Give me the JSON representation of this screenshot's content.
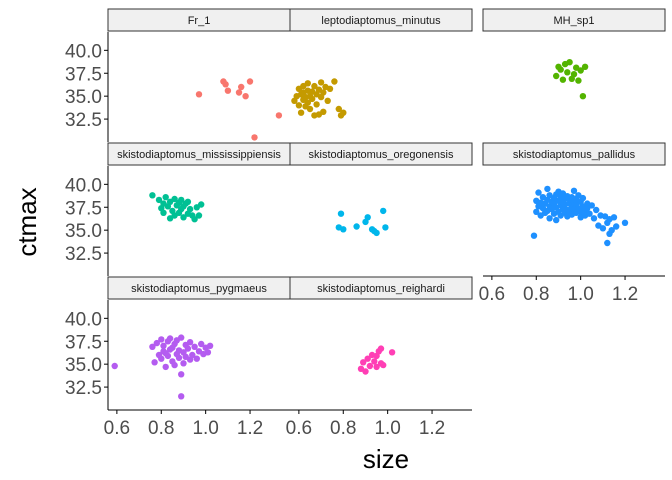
{
  "chart_data": {
    "type": "scatter",
    "xlabel": "size",
    "ylabel": "ctmax",
    "xlim": [
      0.56,
      1.38
    ],
    "ylim": [
      30.0,
      42.0
    ],
    "x_ticks": [
      "0.6",
      "0.8",
      "1.0",
      "1.2"
    ],
    "y_ticks": [
      "32.5",
      "35.0",
      "37.5",
      "40.0"
    ],
    "facets": [
      {
        "name": "Fr_1",
        "color": "#F8766D",
        "points": [
          [
            0.97,
            35.2
          ],
          [
            1.08,
            36.6
          ],
          [
            1.09,
            36.3
          ],
          [
            1.1,
            35.6
          ],
          [
            1.15,
            35.4
          ],
          [
            1.16,
            36.0
          ],
          [
            1.18,
            35.0
          ],
          [
            1.2,
            36.6
          ],
          [
            1.22,
            30.5
          ],
          [
            1.33,
            32.9
          ]
        ]
      },
      {
        "name": "leptodiaptomus_minutus",
        "color": "#C49A00",
        "points": [
          [
            0.58,
            34.5
          ],
          [
            0.59,
            35.0
          ],
          [
            0.6,
            35.8
          ],
          [
            0.6,
            34.0
          ],
          [
            0.61,
            35.2
          ],
          [
            0.61,
            33.2
          ],
          [
            0.62,
            36.1
          ],
          [
            0.62,
            34.6
          ],
          [
            0.62,
            35.4
          ],
          [
            0.63,
            34.9
          ],
          [
            0.63,
            33.9
          ],
          [
            0.64,
            35.6
          ],
          [
            0.64,
            36.4
          ],
          [
            0.64,
            34.3
          ],
          [
            0.65,
            35.0
          ],
          [
            0.65,
            33.6
          ],
          [
            0.66,
            35.5
          ],
          [
            0.66,
            34.7
          ],
          [
            0.67,
            36.1
          ],
          [
            0.67,
            32.9
          ],
          [
            0.68,
            35.2
          ],
          [
            0.68,
            34.1
          ],
          [
            0.69,
            35.7
          ],
          [
            0.69,
            33.0
          ],
          [
            0.7,
            36.5
          ],
          [
            0.7,
            34.9
          ],
          [
            0.71,
            35.4
          ],
          [
            0.71,
            33.3
          ],
          [
            0.72,
            36.0
          ],
          [
            0.73,
            34.5
          ],
          [
            0.74,
            35.8
          ],
          [
            0.76,
            36.6
          ],
          [
            0.78,
            33.6
          ],
          [
            0.79,
            32.9
          ],
          [
            0.8,
            33.2
          ]
        ]
      },
      {
        "name": "MH_sp1",
        "color": "#53B400",
        "points": [
          [
            0.89,
            37.2
          ],
          [
            0.9,
            38.2
          ],
          [
            0.91,
            37.9
          ],
          [
            0.92,
            36.8
          ],
          [
            0.93,
            38.5
          ],
          [
            0.94,
            37.6
          ],
          [
            0.95,
            38.7
          ],
          [
            0.96,
            36.9
          ],
          [
            0.97,
            37.4
          ],
          [
            0.98,
            38.1
          ],
          [
            0.99,
            36.7
          ],
          [
            1.0,
            37.8
          ],
          [
            1.01,
            35.0
          ],
          [
            1.02,
            38.2
          ]
        ]
      },
      {
        "name": "skistodiaptomus_mississippiensis",
        "color": "#00C094",
        "points": [
          [
            0.76,
            38.8
          ],
          [
            0.79,
            38.3
          ],
          [
            0.8,
            37.4
          ],
          [
            0.81,
            36.9
          ],
          [
            0.81,
            37.9
          ],
          [
            0.82,
            38.6
          ],
          [
            0.83,
            37.6
          ],
          [
            0.84,
            36.3
          ],
          [
            0.84,
            38.1
          ],
          [
            0.85,
            37.1
          ],
          [
            0.86,
            38.4
          ],
          [
            0.86,
            36.6
          ],
          [
            0.87,
            37.7
          ],
          [
            0.88,
            38.0
          ],
          [
            0.88,
            36.9
          ],
          [
            0.89,
            37.3
          ],
          [
            0.89,
            38.3
          ],
          [
            0.9,
            36.4
          ],
          [
            0.9,
            37.6
          ],
          [
            0.91,
            37.9
          ],
          [
            0.92,
            36.8
          ],
          [
            0.92,
            38.1
          ],
          [
            0.93,
            37.3
          ],
          [
            0.94,
            36.6
          ],
          [
            0.95,
            36.2
          ],
          [
            0.96,
            37.5
          ],
          [
            0.97,
            36.6
          ],
          [
            0.98,
            37.8
          ]
        ]
      },
      {
        "name": "skistodiaptomus_oregonensis",
        "color": "#00B6EB",
        "points": [
          [
            0.78,
            35.3
          ],
          [
            0.79,
            36.8
          ],
          [
            0.8,
            35.1
          ],
          [
            0.86,
            35.4
          ],
          [
            0.9,
            35.9
          ],
          [
            0.91,
            36.4
          ],
          [
            0.93,
            35.1
          ],
          [
            0.94,
            34.9
          ],
          [
            0.95,
            34.7
          ],
          [
            0.98,
            37.1
          ],
          [
            0.99,
            35.3
          ]
        ]
      },
      {
        "name": "skistodiaptomus_pallidus",
        "color": "#A58AFF",
        "colorOverride": "#1E90FF",
        "points": [
          [
            0.8,
            38.2
          ],
          [
            0.8,
            37.0
          ],
          [
            0.81,
            37.6
          ],
          [
            0.81,
            39.1
          ],
          [
            0.82,
            38.0
          ],
          [
            0.82,
            36.6
          ],
          [
            0.83,
            37.4
          ],
          [
            0.83,
            38.6
          ],
          [
            0.84,
            37.9
          ],
          [
            0.84,
            36.9
          ],
          [
            0.85,
            38.3
          ],
          [
            0.85,
            37.1
          ],
          [
            0.85,
            39.5
          ],
          [
            0.86,
            37.6
          ],
          [
            0.86,
            38.8
          ],
          [
            0.86,
            36.3
          ],
          [
            0.87,
            38.1
          ],
          [
            0.87,
            37.3
          ],
          [
            0.88,
            38.5
          ],
          [
            0.88,
            36.8
          ],
          [
            0.88,
            37.9
          ],
          [
            0.89,
            38.9
          ],
          [
            0.89,
            37.5
          ],
          [
            0.89,
            36.1
          ],
          [
            0.9,
            38.2
          ],
          [
            0.9,
            37.0
          ],
          [
            0.9,
            39.2
          ],
          [
            0.91,
            37.7
          ],
          [
            0.91,
            38.6
          ],
          [
            0.91,
            36.6
          ],
          [
            0.92,
            38.0
          ],
          [
            0.92,
            37.3
          ],
          [
            0.92,
            39.0
          ],
          [
            0.93,
            37.8
          ],
          [
            0.93,
            36.9
          ],
          [
            0.93,
            38.4
          ],
          [
            0.94,
            37.2
          ],
          [
            0.94,
            38.7
          ],
          [
            0.94,
            36.5
          ],
          [
            0.95,
            37.9
          ],
          [
            0.95,
            38.3
          ],
          [
            0.95,
            37.0
          ],
          [
            0.96,
            38.6
          ],
          [
            0.96,
            37.5
          ],
          [
            0.96,
            36.7
          ],
          [
            0.97,
            38.1
          ],
          [
            0.97,
            37.3
          ],
          [
            0.97,
            39.3
          ],
          [
            0.98,
            37.8
          ],
          [
            0.98,
            36.9
          ],
          [
            0.98,
            38.4
          ],
          [
            0.99,
            37.4
          ],
          [
            0.99,
            38.8
          ],
          [
            1.0,
            37.0
          ],
          [
            1.0,
            38.1
          ],
          [
            1.0,
            36.4
          ],
          [
            1.01,
            37.6
          ],
          [
            1.01,
            38.5
          ],
          [
            1.02,
            37.2
          ],
          [
            1.02,
            36.6
          ],
          [
            1.03,
            37.9
          ],
          [
            1.03,
            37.4
          ],
          [
            1.04,
            36.8
          ],
          [
            1.05,
            37.7
          ],
          [
            1.06,
            36.3
          ],
          [
            1.07,
            37.2
          ],
          [
            1.08,
            35.5
          ],
          [
            1.09,
            36.6
          ],
          [
            1.1,
            35.2
          ],
          [
            1.11,
            36.5
          ],
          [
            1.12,
            35.8
          ],
          [
            1.13,
            34.6
          ],
          [
            1.13,
            36.2
          ],
          [
            1.14,
            35.0
          ],
          [
            1.15,
            36.4
          ],
          [
            1.16,
            35.4
          ],
          [
            1.12,
            33.6
          ],
          [
            1.2,
            35.8
          ],
          [
            0.79,
            34.4
          ]
        ]
      },
      {
        "name": "skistodiaptomus_pygmaeus",
        "color": "#FB61D7",
        "colorOverride": "#B45CF0",
        "points": [
          [
            0.59,
            34.8
          ],
          [
            0.76,
            36.9
          ],
          [
            0.77,
            35.2
          ],
          [
            0.78,
            37.3
          ],
          [
            0.79,
            36.0
          ],
          [
            0.8,
            37.7
          ],
          [
            0.8,
            35.6
          ],
          [
            0.81,
            36.4
          ],
          [
            0.81,
            37.0
          ],
          [
            0.82,
            36.2
          ],
          [
            0.82,
            34.7
          ],
          [
            0.83,
            37.5
          ],
          [
            0.83,
            35.9
          ],
          [
            0.84,
            36.6
          ],
          [
            0.84,
            37.8
          ],
          [
            0.85,
            35.3
          ],
          [
            0.85,
            36.8
          ],
          [
            0.86,
            37.2
          ],
          [
            0.86,
            34.9
          ],
          [
            0.87,
            36.1
          ],
          [
            0.87,
            37.6
          ],
          [
            0.88,
            35.7
          ],
          [
            0.88,
            36.5
          ],
          [
            0.89,
            37.9
          ],
          [
            0.89,
            31.5
          ],
          [
            0.89,
            33.9
          ],
          [
            0.9,
            36.3
          ],
          [
            0.9,
            35.1
          ],
          [
            0.91,
            37.1
          ],
          [
            0.91,
            35.8
          ],
          [
            0.92,
            36.7
          ],
          [
            0.93,
            35.5
          ],
          [
            0.93,
            37.4
          ],
          [
            0.94,
            36.0
          ],
          [
            0.95,
            36.9
          ],
          [
            0.96,
            35.6
          ],
          [
            0.97,
            36.4
          ],
          [
            0.98,
            37.2
          ],
          [
            0.99,
            36.1
          ],
          [
            1.0,
            36.8
          ],
          [
            1.01,
            36.3
          ],
          [
            1.02,
            37.0
          ]
        ]
      },
      {
        "name": "skistodiaptomus_reighardi",
        "color": "#FF3FB5",
        "points": [
          [
            0.88,
            34.5
          ],
          [
            0.89,
            35.2
          ],
          [
            0.9,
            34.2
          ],
          [
            0.91,
            35.6
          ],
          [
            0.92,
            34.8
          ],
          [
            0.93,
            36.0
          ],
          [
            0.94,
            35.3
          ],
          [
            0.95,
            34.7
          ],
          [
            0.95,
            35.9
          ],
          [
            0.96,
            36.4
          ],
          [
            0.97,
            35.1
          ],
          [
            0.97,
            36.7
          ],
          [
            0.98,
            34.9
          ],
          [
            1.02,
            36.3
          ]
        ]
      }
    ]
  }
}
